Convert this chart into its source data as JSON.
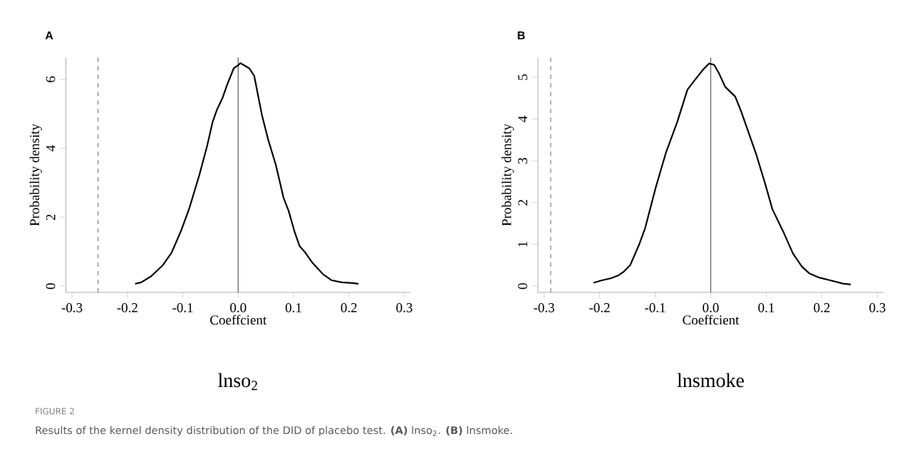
{
  "chart_data": [
    {
      "type": "line",
      "title": "A",
      "xlabel": "Coeffcient",
      "ylabel": "Probability density",
      "color": "#000000",
      "x": [
        -0.186,
        -0.175,
        -0.157,
        -0.136,
        -0.12,
        -0.103,
        -0.088,
        -0.07,
        -0.056,
        -0.046,
        -0.038,
        -0.028,
        -0.02,
        -0.008,
        0.0,
        0.004,
        0.02,
        0.029,
        0.043,
        0.054,
        0.068,
        0.082,
        0.091,
        0.102,
        0.111,
        0.121,
        0.134,
        0.153,
        0.169,
        0.187,
        0.206,
        0.217
      ],
      "values": [
        0.07,
        0.11,
        0.29,
        0.61,
        0.98,
        1.61,
        2.27,
        3.23,
        4.07,
        4.77,
        5.13,
        5.47,
        5.84,
        6.32,
        6.41,
        6.47,
        6.32,
        6.1,
        4.96,
        4.26,
        3.52,
        2.56,
        2.19,
        1.57,
        1.16,
        0.98,
        0.68,
        0.35,
        0.17,
        0.11,
        0.09,
        0.07
      ],
      "xlim": [
        -0.311,
        0.311
      ],
      "ylim": [
        -0.18,
        6.63
      ],
      "xticks": [
        -0.3,
        -0.2,
        -0.1,
        {
          "value": 0,
          "label": "0.0"
        },
        0.1,
        0.2,
        0.3
      ],
      "yticks": [
        0,
        2,
        4,
        6
      ],
      "ref_lines": [
        {
          "axis": "x",
          "value": 0,
          "color": "#595959"
        },
        {
          "axis": "x",
          "value": -0.253,
          "color": "#808080",
          "line_style": "dashed"
        }
      ],
      "annotations": [
        "lnso$_{2}$",
        "FIGURE 2",
        "Results of the kernel density distribution of the DID of placebo test. **(A)** lnso$_{2}$. **(B)** lnsmoke."
      ]
    },
    {
      "type": "line",
      "title": "B",
      "xlabel": "Coeffcient",
      "ylabel": "Probability density",
      "color": "#000000",
      "x": [
        -0.211,
        -0.198,
        -0.179,
        -0.166,
        -0.157,
        -0.145,
        -0.129,
        -0.118,
        -0.099,
        -0.081,
        -0.06,
        -0.042,
        -0.03,
        -0.014,
        -0.003,
        0.006,
        0.015,
        0.026,
        0.044,
        0.054,
        0.082,
        0.098,
        0.111,
        0.13,
        0.148,
        0.164,
        0.178,
        0.196,
        0.215,
        0.238,
        0.252
      ],
      "values": [
        0.08,
        0.13,
        0.19,
        0.26,
        0.34,
        0.5,
        0.99,
        1.39,
        2.36,
        3.18,
        3.94,
        4.7,
        4.91,
        5.18,
        5.33,
        5.3,
        5.09,
        4.77,
        4.54,
        4.21,
        3.15,
        2.45,
        1.84,
        1.32,
        0.78,
        0.47,
        0.3,
        0.2,
        0.14,
        0.06,
        0.04
      ],
      "xlim": [
        -0.311,
        0.311
      ],
      "ylim": [
        -0.15,
        5.47
      ],
      "xticks": [
        -0.3,
        -0.2,
        -0.1,
        {
          "value": 0,
          "label": "0.0"
        },
        0.1,
        0.2,
        0.3
      ],
      "yticks": [
        0,
        1,
        2,
        3,
        4,
        5
      ],
      "ref_lines": [
        {
          "axis": "x",
          "value": 0,
          "color": "#595959"
        },
        {
          "axis": "x",
          "value": -0.288,
          "color": "#808080",
          "line_style": "dashed"
        }
      ],
      "annotations": [
        "lnsmoke"
      ]
    }
  ]
}
